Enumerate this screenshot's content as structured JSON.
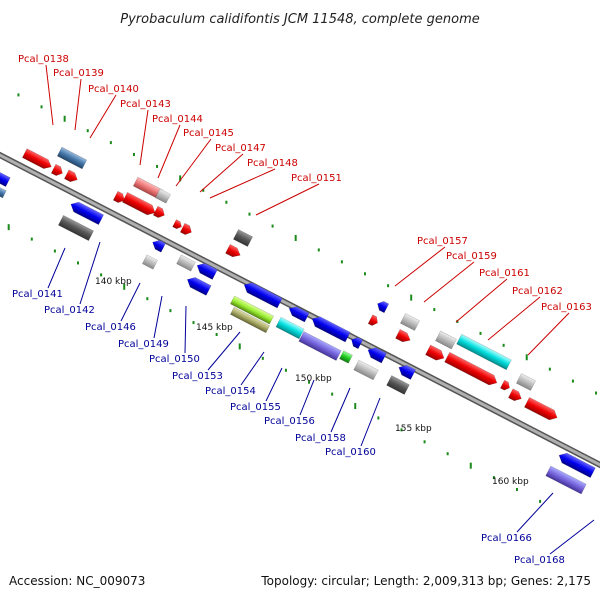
{
  "title": "Pyrobaculum calidifontis JCM 11548, complete genome",
  "footer": {
    "accession": "Accession: NC_009073",
    "stats": "Topology: circular; Length: 2,009,313 bp; Genes: 2,175"
  },
  "colors": {
    "forward_label": "#cc0000",
    "reverse_label": "#000099",
    "backbone": "#8c8c8c",
    "tick": "#1a8a1a"
  },
  "scale_labels": [
    "140 kbp",
    "145 kbp",
    "150 kbp",
    "155 kbp",
    "160 kbp"
  ],
  "forward_genes": [
    "Pcal_0138",
    "Pcal_0139",
    "Pcal_0140",
    "Pcal_0143",
    "Pcal_0144",
    "Pcal_0145",
    "Pcal_0147",
    "Pcal_0148",
    "Pcal_0151",
    "Pcal_0157",
    "Pcal_0159",
    "Pcal_0161",
    "Pcal_0162",
    "Pcal_0163"
  ],
  "reverse_genes": [
    "Pcal_0141",
    "Pcal_0142",
    "Pcal_0146",
    "Pcal_0149",
    "Pcal_0150",
    "Pcal_0153",
    "Pcal_0154",
    "Pcal_0155",
    "Pcal_0156",
    "Pcal_0158",
    "Pcal_0160",
    "Pcal_0166",
    "Pcal_0168"
  ]
}
